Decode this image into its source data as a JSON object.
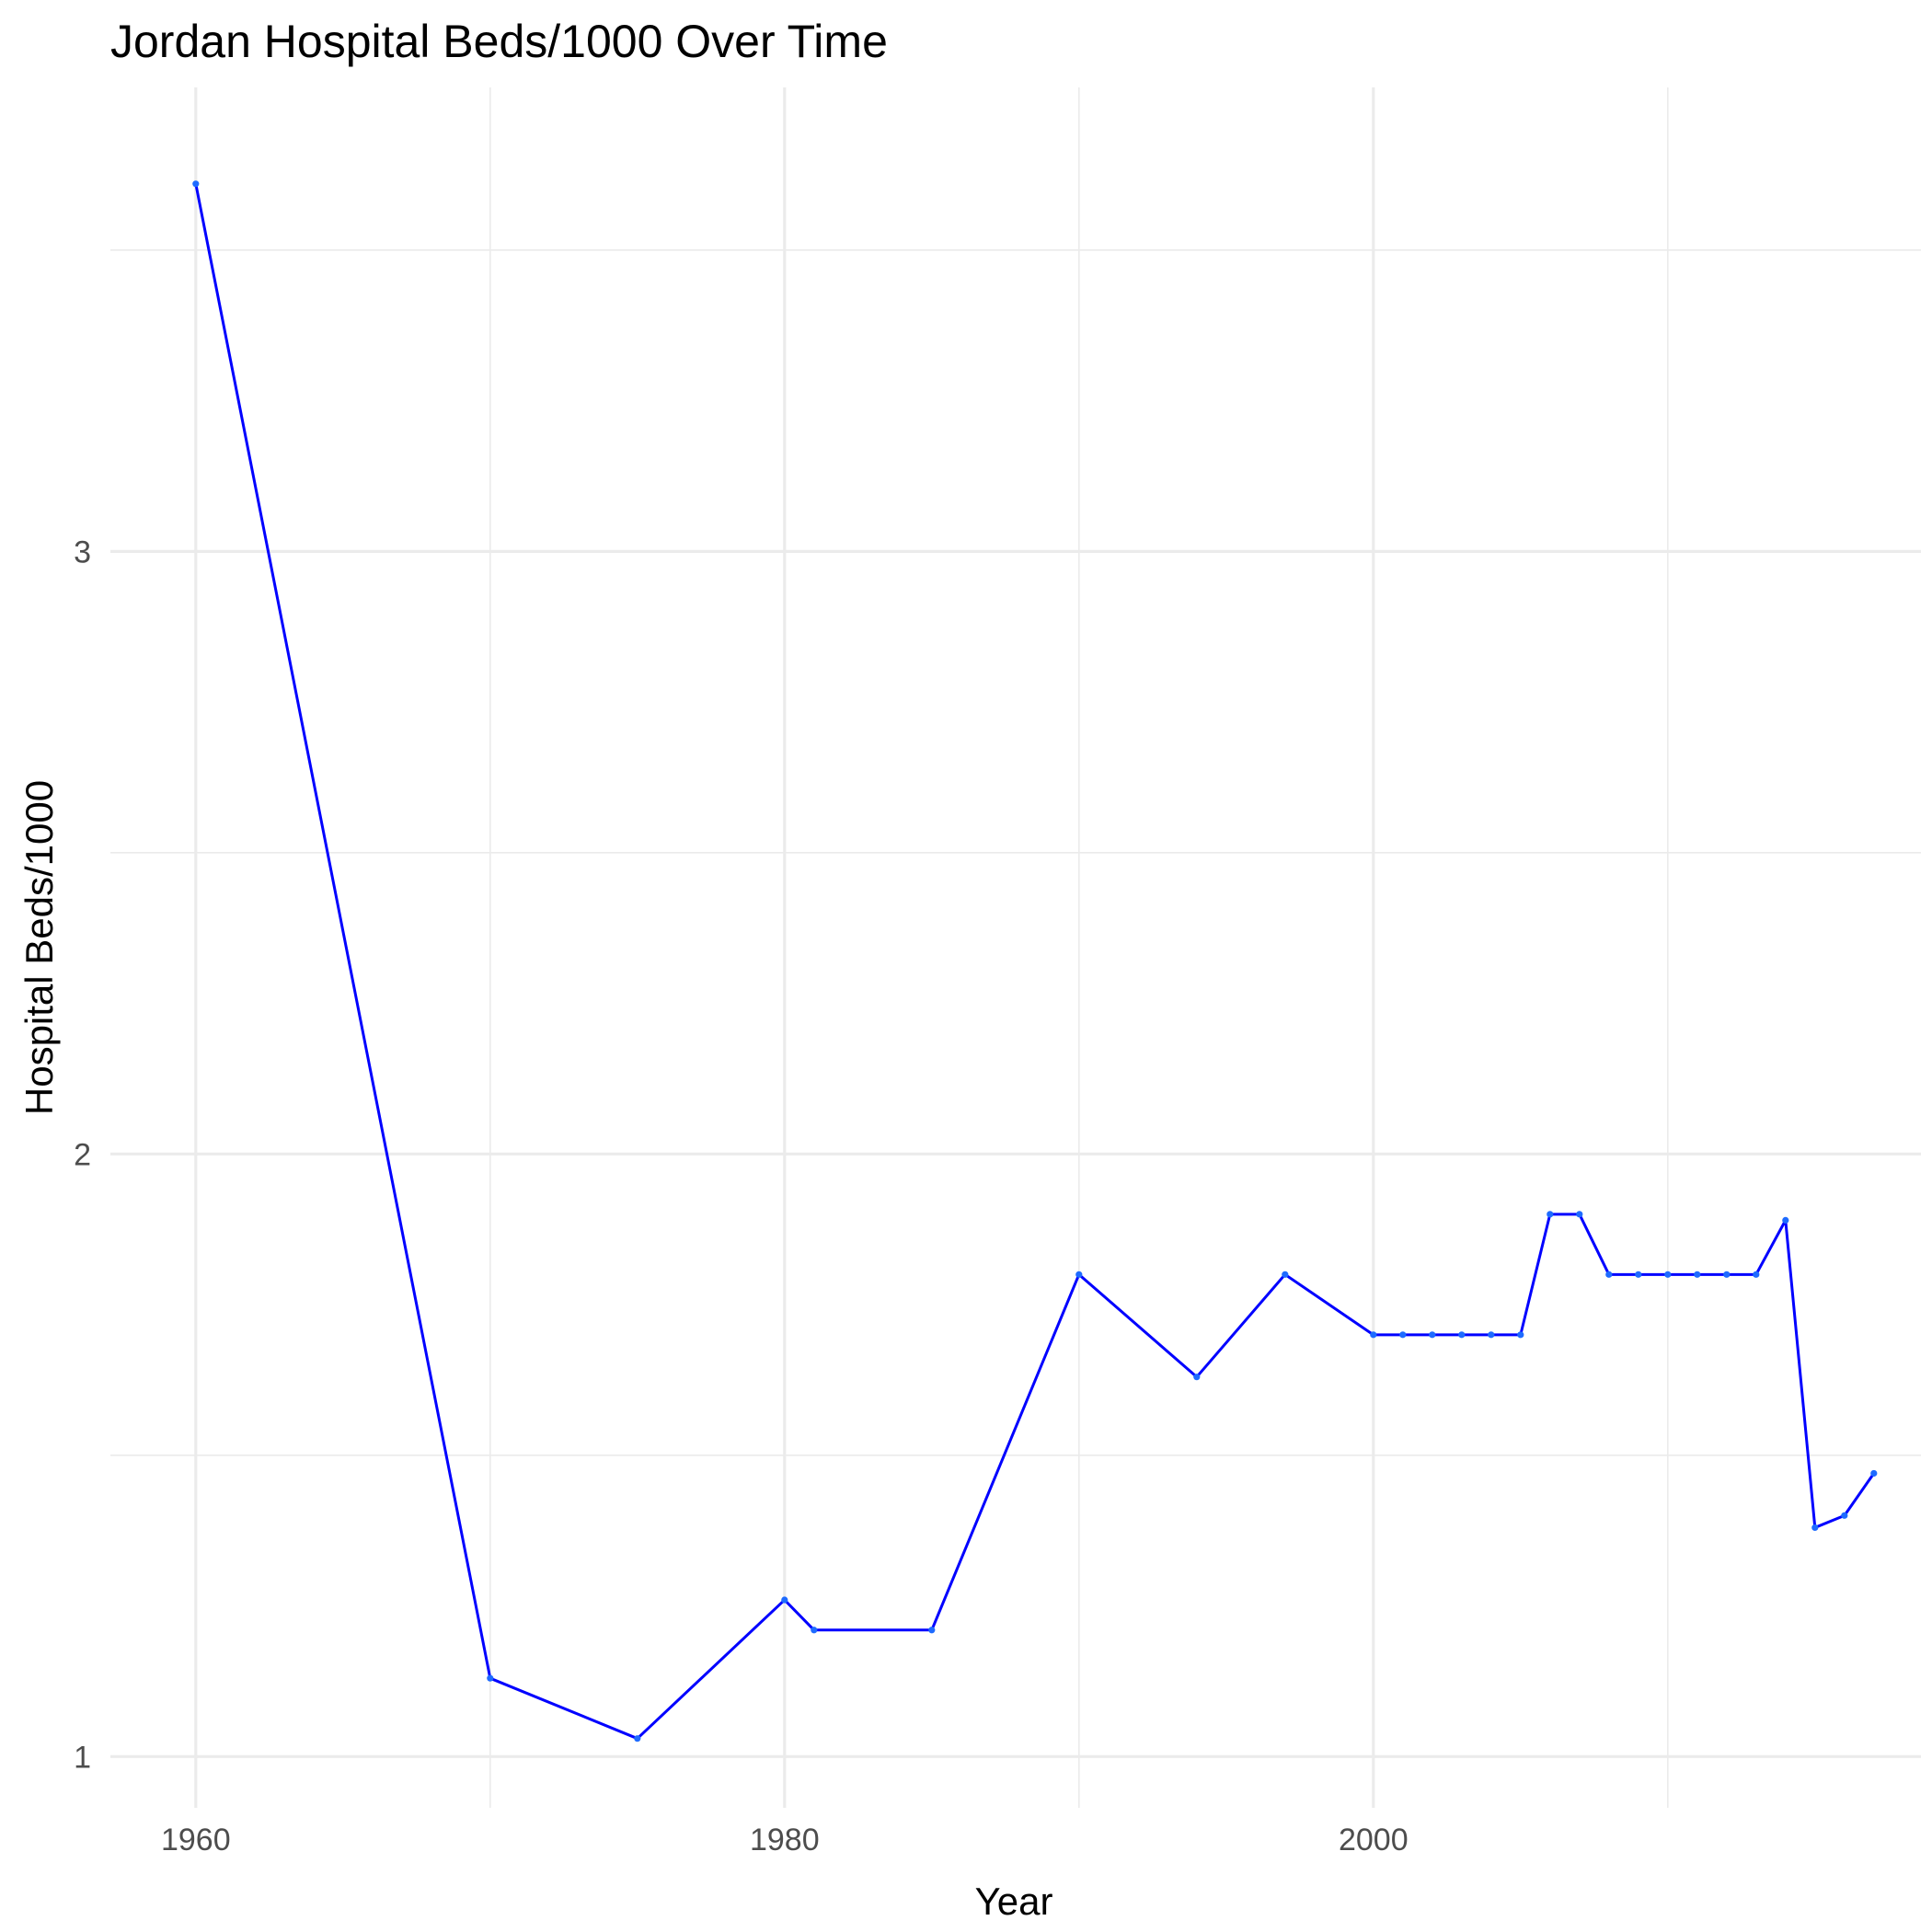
{
  "chart_data": {
    "type": "line",
    "title": "Jordan Hospital Beds/1000 Over Time",
    "xlabel": "Year",
    "ylabel": "Hospital Beds/1000",
    "xlim": [
      1957.1,
      2018.6
    ],
    "ylim": [
      0.915,
      3.77
    ],
    "x_ticks": [
      1960,
      1980,
      2000
    ],
    "x_tick_labels": [
      "1960",
      "1980",
      "2000"
    ],
    "x_minor_ticks": [
      1970,
      1990,
      2010
    ],
    "y_ticks": [
      1,
      2,
      3
    ],
    "y_tick_labels": [
      "1",
      "2",
      "3"
    ],
    "y_minor_ticks": [
      1.5,
      2.5,
      3.5
    ],
    "grid": true,
    "colors": {
      "line": "#0000ff",
      "point": "#1e6bff",
      "grid": "#ebebeb",
      "background": "#ffffff"
    },
    "series": [
      {
        "x": [
          1960,
          1970,
          1975,
          1980,
          1981,
          1985,
          1990,
          1994,
          1997,
          2000,
          2001,
          2002,
          2003,
          2004,
          2005,
          2006,
          2007,
          2008,
          2009,
          2010,
          2011,
          2012,
          2013,
          2014,
          2015,
          2016,
          2017
        ],
        "values": [
          3.61,
          1.13,
          1.03,
          1.26,
          1.21,
          1.21,
          1.8,
          1.63,
          1.8,
          1.7,
          1.7,
          1.7,
          1.7,
          1.7,
          1.7,
          1.9,
          1.9,
          1.8,
          1.8,
          1.8,
          1.8,
          1.8,
          1.8,
          1.89,
          1.38,
          1.4,
          1.47
        ]
      }
    ]
  }
}
